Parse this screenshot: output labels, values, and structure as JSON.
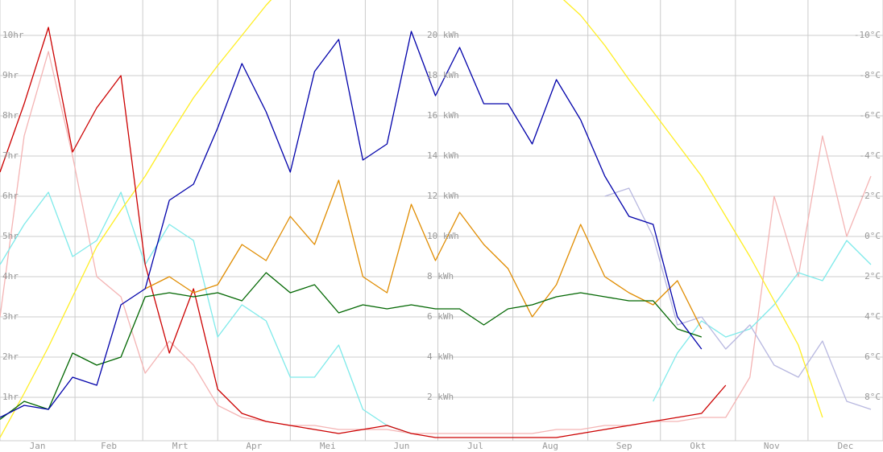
{
  "chart_data": {
    "type": "line",
    "months": [
      "Jan",
      "Feb",
      "Mrt",
      "Apr",
      "Mei",
      "Jun",
      "Jul",
      "Aug",
      "Sep",
      "Okt",
      "Nov",
      "Dec"
    ],
    "xlim": [
      0,
      365
    ],
    "xticks": [
      0,
      31,
      59,
      90,
      120,
      151,
      181,
      212,
      243,
      273,
      304,
      334,
      365
    ],
    "x": [
      0,
      10,
      20,
      30,
      40,
      50,
      60,
      70,
      80,
      90,
      100,
      110,
      120,
      130,
      140,
      150,
      160,
      170,
      180,
      190,
      200,
      210,
      220,
      230,
      240,
      250,
      260,
      270,
      280,
      290,
      300,
      310,
      320,
      330,
      340,
      350,
      360
    ],
    "ylim": [
      0,
      10.88
    ],
    "yticks": [
      {
        "value": 1,
        "label": "1hr"
      },
      {
        "value": 2,
        "label": "2hr"
      },
      {
        "value": 3,
        "label": "3hr"
      },
      {
        "value": 4,
        "label": "4hr"
      },
      {
        "value": 5,
        "label": "5hr"
      },
      {
        "value": 6,
        "label": "6hr"
      },
      {
        "value": 7,
        "label": "7hr"
      },
      {
        "value": 8,
        "label": "8hr"
      },
      {
        "value": 9,
        "label": "9hr"
      },
      {
        "value": 10,
        "label": "10hr"
      }
    ],
    "y3lim": [
      0,
      21.76
    ],
    "y3ticks": [
      {
        "value": 2,
        "label": "2 kWh"
      },
      {
        "value": 4,
        "label": "4 kWh"
      },
      {
        "value": 6,
        "label": "6 kWh"
      },
      {
        "value": 8,
        "label": "8 kWh"
      },
      {
        "value": 10,
        "label": "10 kWh"
      },
      {
        "value": 12,
        "label": "12 kWh"
      },
      {
        "value": 14,
        "label": "14 kWh"
      },
      {
        "value": 16,
        "label": "16 kWh"
      },
      {
        "value": 18,
        "label": "18 kWh"
      },
      {
        "value": 20,
        "label": "20 kWh"
      }
    ],
    "y2lim": [
      10,
      -11.76
    ],
    "y2ticks": [
      {
        "value": -10,
        "label": "-10°C"
      },
      {
        "value": -8,
        "label": "-8°C"
      },
      {
        "value": -6,
        "label": "-6°C"
      },
      {
        "value": -4,
        "label": "-4°C"
      },
      {
        "value": -2,
        "label": "-2°C"
      },
      {
        "value": 0,
        "label": "0°C"
      },
      {
        "value": 2,
        "label": "2°C"
      },
      {
        "value": 4,
        "label": "4°C"
      },
      {
        "value": 6,
        "label": "6°C"
      },
      {
        "value": 8,
        "label": "8°C"
      }
    ],
    "grid": true,
    "series": [
      {
        "color": "#f4b4b4",
        "axis": "y",
        "values": [
          3.0,
          7.5,
          9.6,
          7.0,
          4.0,
          3.5,
          1.6,
          2.4,
          1.8,
          0.8,
          0.5,
          0.4,
          0.3,
          0.3,
          0.2,
          0.2,
          0.2,
          0.1,
          0.1,
          0.1,
          0.1,
          0.1,
          0.1,
          0.2,
          0.2,
          0.3,
          0.3,
          0.4,
          0.4,
          0.5,
          0.5,
          1.5,
          6.0,
          4.0,
          7.5,
          5.0,
          6.5
        ]
      },
      {
        "color": "#7eeaea",
        "axis": "y2",
        "values": [
          1.4,
          -0.6,
          -2.2,
          1.0,
          0.2,
          -2.2,
          1.4,
          -0.6,
          0.2,
          5.0,
          3.4,
          4.2,
          7.0,
          7.0,
          5.4,
          8.6,
          9.4,
          9.8,
          null,
          null,
          null,
          null,
          null,
          null,
          null,
          null,
          null,
          8.2,
          5.8,
          4.2,
          5.0,
          4.6,
          3.4,
          1.8,
          2.2,
          0.2,
          1.4
        ]
      },
      {
        "color": "#b8b8e0",
        "axis": "y3",
        "values": [
          null,
          null,
          null,
          null,
          null,
          null,
          null,
          null,
          null,
          null,
          null,
          null,
          null,
          null,
          null,
          null,
          null,
          null,
          null,
          null,
          null,
          null,
          null,
          null,
          null,
          12.0,
          12.4,
          10.0,
          5.6,
          6.0,
          4.4,
          5.6,
          3.6,
          3.0,
          4.8,
          1.8,
          1.4
        ]
      },
      {
        "color": "#ffee22",
        "axis": "y3",
        "values": [
          0,
          2.2,
          4.5,
          7.0,
          9.5,
          11.3,
          13,
          15,
          16.9,
          18.5,
          20,
          21.5,
          22.8,
          23.7,
          24.5,
          25,
          25.2,
          25.3,
          25.2,
          24.9,
          24.4,
          23.8,
          23,
          22.1,
          21,
          19.5,
          17.8,
          16.2,
          14.6,
          13,
          11,
          9,
          6.8,
          4.6,
          1.0,
          null,
          null
        ]
      },
      {
        "color": "#cc0000",
        "axis": "y",
        "values": [
          6.6,
          8.3,
          10.2,
          7.1,
          8.2,
          9.0,
          4.3,
          2.1,
          3.7,
          1.2,
          0.6,
          0.4,
          0.3,
          0.2,
          0.1,
          0.2,
          0.3,
          0.1,
          0.0,
          0.0,
          0.0,
          0.0,
          0.0,
          0.0,
          0.1,
          0.2,
          0.3,
          0.4,
          0.5,
          0.6,
          1.3,
          null,
          null,
          null,
          null,
          null,
          null
        ]
      },
      {
        "color": "#e08c00",
        "axis": "y3",
        "values": [
          null,
          null,
          null,
          null,
          null,
          null,
          7.4,
          8.0,
          7.2,
          7.6,
          9.6,
          8.8,
          11.0,
          9.6,
          12.8,
          8.0,
          7.2,
          11.6,
          8.8,
          11.2,
          9.6,
          8.4,
          6.0,
          7.6,
          10.6,
          8.0,
          7.2,
          6.6,
          7.8,
          5.4,
          null,
          null,
          null,
          null,
          null,
          null,
          null
        ]
      },
      {
        "color": "#006600",
        "axis": "y3",
        "values": [
          0.9,
          1.8,
          1.4,
          4.2,
          3.6,
          4.0,
          7.0,
          7.2,
          7.0,
          7.2,
          6.8,
          8.2,
          7.2,
          7.6,
          6.2,
          6.6,
          6.4,
          6.6,
          6.4,
          6.4,
          5.6,
          6.4,
          6.6,
          7.0,
          7.2,
          7.0,
          6.8,
          6.8,
          5.4,
          5.0,
          null,
          null,
          null,
          null,
          null,
          null,
          null
        ]
      },
      {
        "color": "#0000aa",
        "axis": "y3",
        "values": [
          1.0,
          1.6,
          1.4,
          3.0,
          2.6,
          6.6,
          7.4,
          11.8,
          12.6,
          15.4,
          18.6,
          16.2,
          13.2,
          18.2,
          19.8,
          13.8,
          14.6,
          20.2,
          17.0,
          19.4,
          16.6,
          16.6,
          14.6,
          17.8,
          15.8,
          13.0,
          11.0,
          10.6,
          6.0,
          4.4,
          null,
          null,
          null,
          null,
          null,
          null,
          null
        ]
      }
    ]
  }
}
